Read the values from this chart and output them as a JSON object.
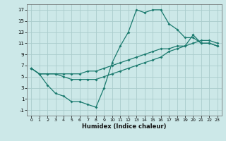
{
  "title": "",
  "xlabel": "Humidex (Indice chaleur)",
  "ylabel": "",
  "background_color": "#cce8e8",
  "grid_color": "#aacccc",
  "line_color": "#1a7a6e",
  "xlim": [
    -0.5,
    23.5
  ],
  "ylim": [
    -2.0,
    18.0
  ],
  "xticks": [
    0,
    1,
    2,
    3,
    4,
    5,
    6,
    7,
    8,
    9,
    10,
    11,
    12,
    13,
    14,
    15,
    16,
    17,
    18,
    19,
    20,
    21,
    22,
    23
  ],
  "yticks": [
    -1,
    1,
    3,
    5,
    7,
    9,
    11,
    13,
    15,
    17
  ],
  "line1": {
    "x": [
      0,
      1,
      2,
      3,
      4,
      5,
      6,
      7,
      8,
      9,
      10,
      11,
      12,
      13,
      14,
      15,
      16,
      17,
      18,
      19,
      20,
      21,
      22,
      23
    ],
    "y": [
      6.5,
      5.5,
      3.5,
      2.0,
      1.5,
      0.5,
      0.5,
      0.0,
      -0.5,
      3.0,
      7.5,
      10.5,
      13.0,
      17.0,
      16.5,
      17.0,
      17.0,
      14.5,
      13.5,
      12.0,
      12.0,
      11.0,
      11.0,
      10.5
    ]
  },
  "line2": {
    "x": [
      0,
      1,
      2,
      3,
      4,
      5,
      6,
      7,
      8,
      9,
      10,
      11,
      12,
      13,
      14,
      15,
      16,
      17,
      18,
      19,
      20,
      21,
      22,
      23
    ],
    "y": [
      6.5,
      5.5,
      5.5,
      5.5,
      5.5,
      5.5,
      5.5,
      6.0,
      6.0,
      6.5,
      7.0,
      7.5,
      8.0,
      8.5,
      9.0,
      9.5,
      10.0,
      10.0,
      10.5,
      10.5,
      11.0,
      11.5,
      11.5,
      11.0
    ]
  },
  "line3": {
    "x": [
      0,
      1,
      2,
      3,
      4,
      5,
      6,
      7,
      8,
      9,
      10,
      11,
      12,
      13,
      14,
      15,
      16,
      17,
      18,
      19,
      20,
      21,
      22,
      23
    ],
    "y": [
      6.5,
      5.5,
      5.5,
      5.5,
      5.0,
      4.5,
      4.5,
      4.5,
      4.5,
      5.0,
      5.5,
      6.0,
      6.5,
      7.0,
      7.5,
      8.0,
      8.5,
      9.5,
      10.0,
      10.5,
      12.5,
      11.0,
      11.0,
      10.5
    ]
  }
}
